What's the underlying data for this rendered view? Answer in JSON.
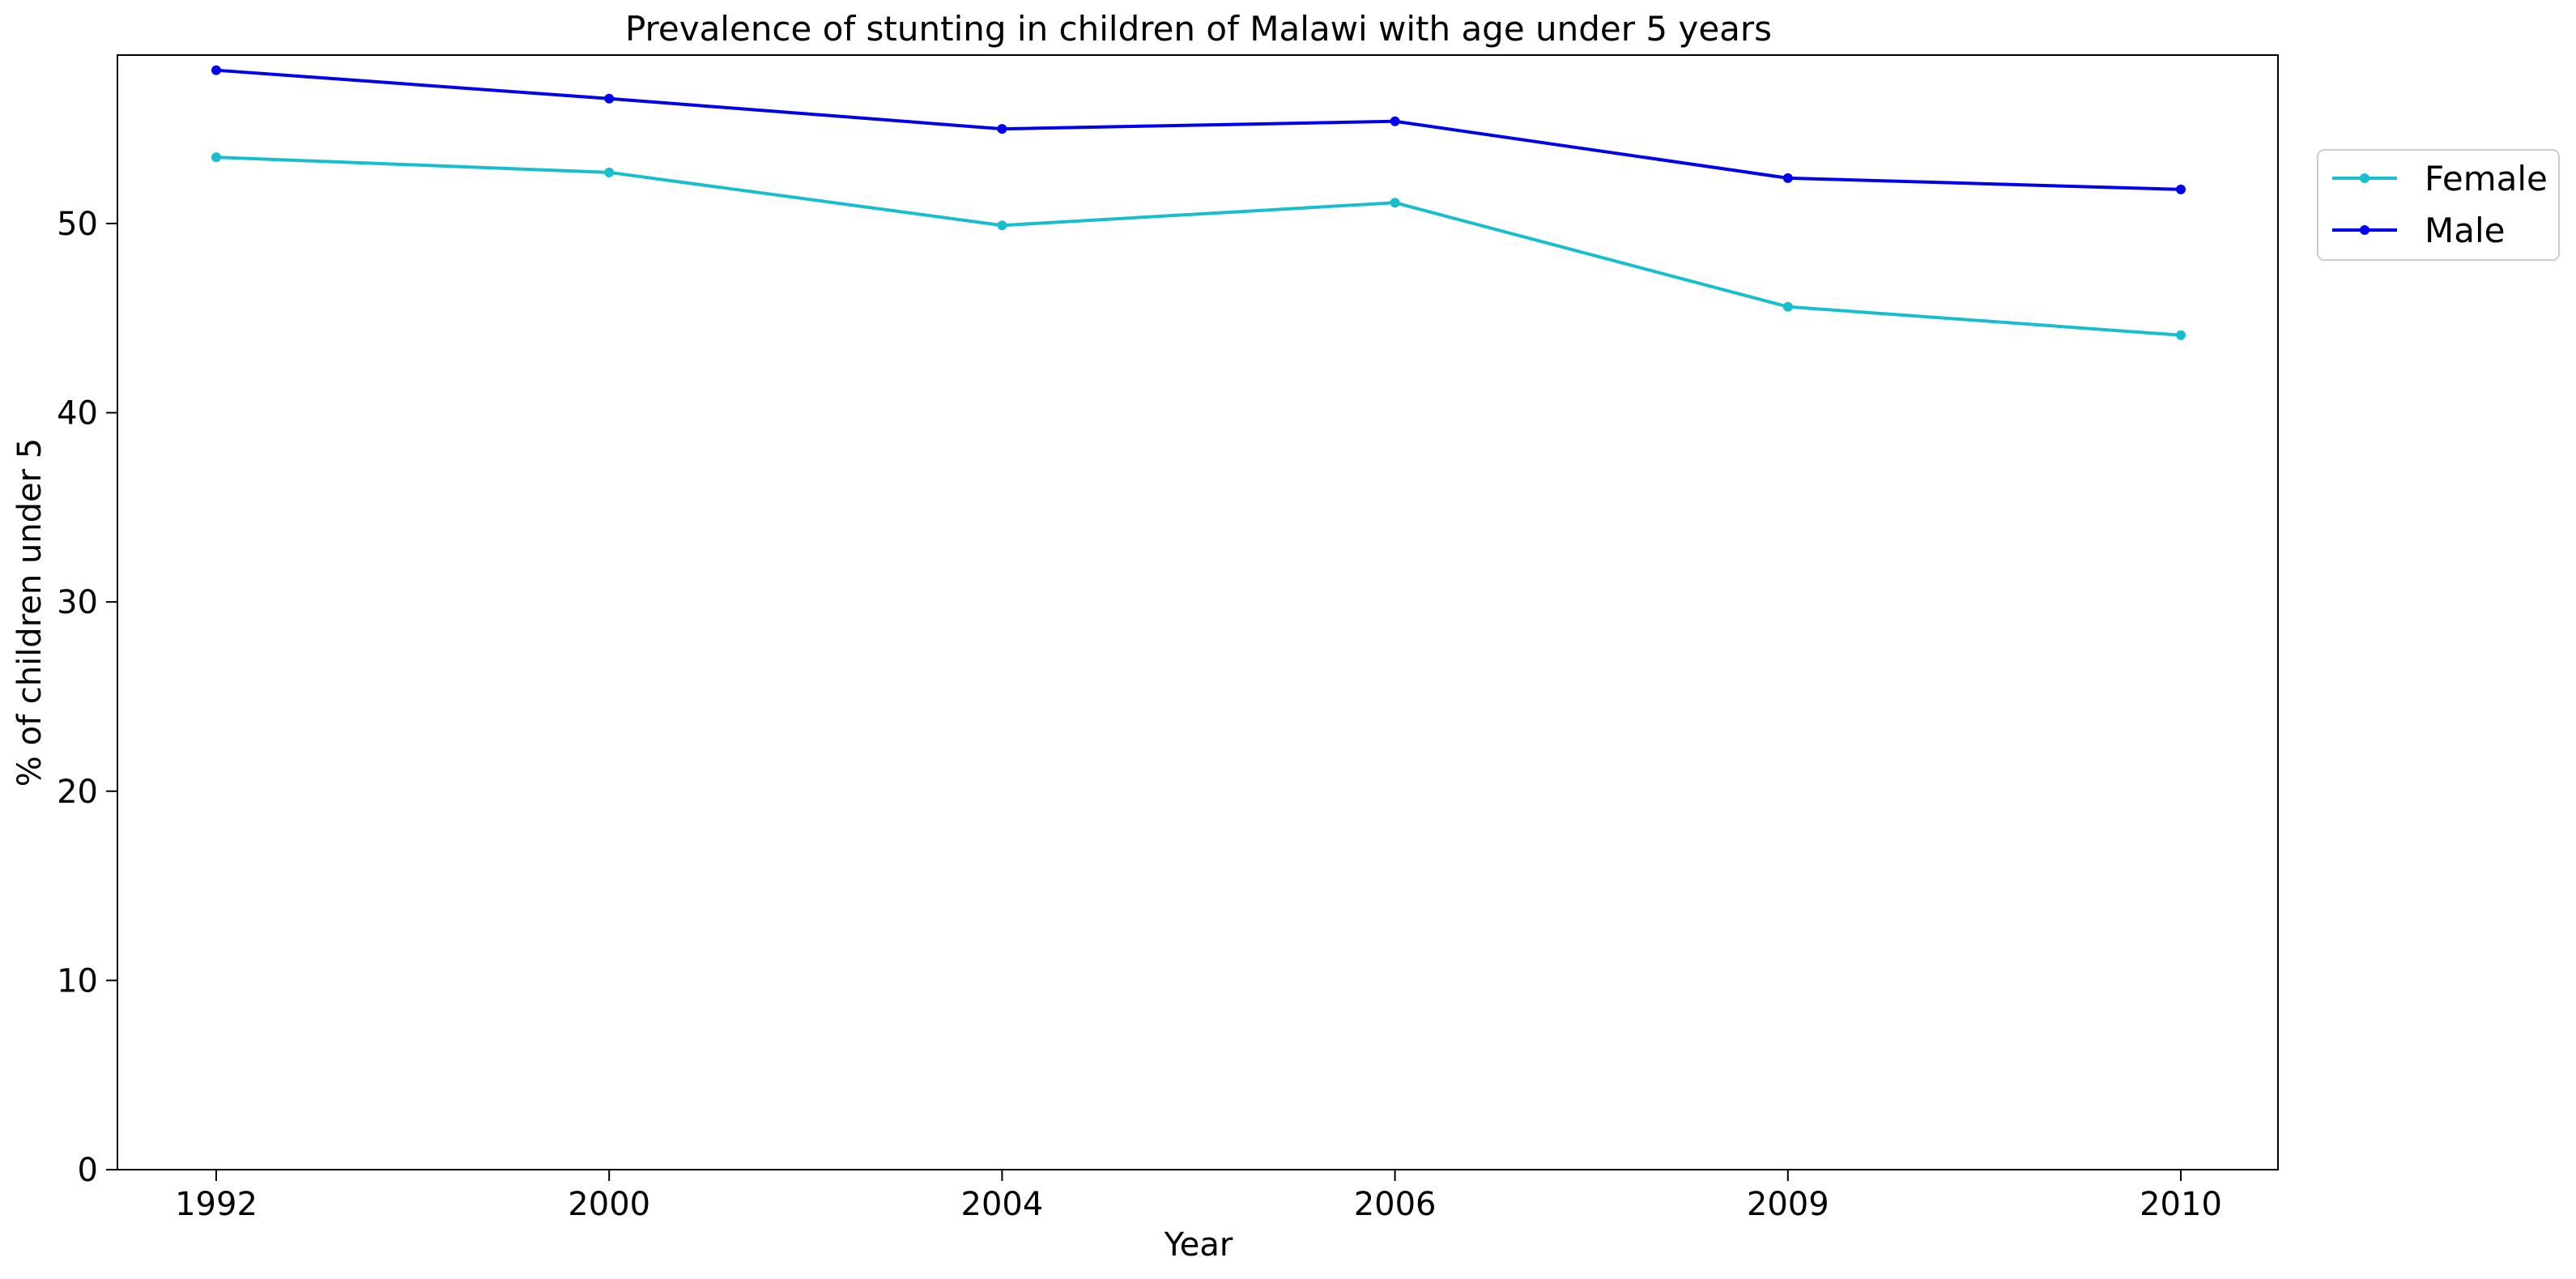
{
  "chart_data": {
    "type": "line",
    "title": "Prevalence of stunting in children of Malawi with age under 5 years",
    "xlabel": "Year",
    "ylabel": "% of children under 5",
    "categories": [
      "1992",
      "2000",
      "2004",
      "2006",
      "2009",
      "2010"
    ],
    "series": [
      {
        "name": "Female",
        "color": "#17becf",
        "values": [
          53.5,
          52.7,
          49.9,
          51.1,
          45.6,
          44.1
        ]
      },
      {
        "name": "Male",
        "color": "#0000ee",
        "values": [
          58.1,
          56.6,
          55.0,
          55.4,
          52.4,
          51.8
        ]
      }
    ],
    "ylim": [
      0,
      58.9
    ],
    "yticks": [
      0,
      10,
      20,
      30,
      40,
      50
    ],
    "grid": false,
    "legend_position": "outside top-right"
  }
}
